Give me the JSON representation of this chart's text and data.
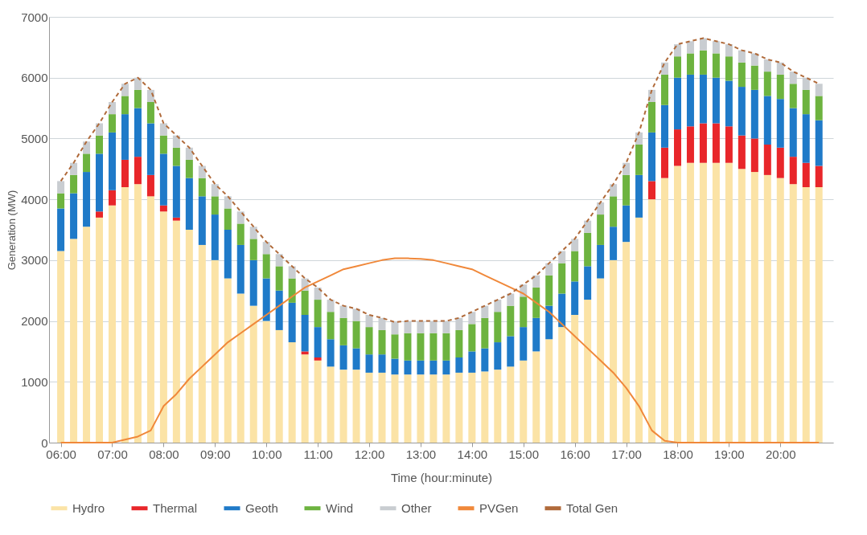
{
  "chart_data": {
    "type": "bar",
    "stacked": true,
    "xlabel": "Time (hour:minute)",
    "ylabel": "Generation (MW)",
    "x": [
      6,
      6.25,
      6.5,
      6.75,
      7,
      7.25,
      7.5,
      7.75,
      8,
      8.25,
      8.5,
      8.75,
      9,
      9.25,
      9.5,
      9.75,
      10,
      10.25,
      10.5,
      10.75,
      11,
      11.25,
      11.5,
      11.75,
      12,
      12.25,
      12.5,
      12.75,
      13,
      13.25,
      13.5,
      13.75,
      14,
      14.25,
      14.5,
      14.75,
      15,
      15.25,
      15.5,
      15.75,
      16,
      16.25,
      16.5,
      16.75,
      17,
      17.25,
      17.5,
      17.75,
      18,
      18.25,
      18.5,
      18.75,
      19,
      19.25,
      19.5,
      19.75,
      20,
      20.25,
      20.5,
      20.75
    ],
    "xlim": [
      5.85,
      20.95
    ],
    "xticks": [
      {
        "value": 6,
        "label": "06:00"
      },
      {
        "value": 7,
        "label": "07:00"
      },
      {
        "value": 8,
        "label": "08:00"
      },
      {
        "value": 9,
        "label": "09:00"
      },
      {
        "value": 10,
        "label": "10:00"
      },
      {
        "value": 11,
        "label": "11:00"
      },
      {
        "value": 12,
        "label": "12:00"
      },
      {
        "value": 13,
        "label": "13:00"
      },
      {
        "value": 14,
        "label": "14:00"
      },
      {
        "value": 15,
        "label": "15:00"
      },
      {
        "value": 16,
        "label": "16:00"
      },
      {
        "value": 17,
        "label": "17:00"
      },
      {
        "value": 18,
        "label": "18:00"
      },
      {
        "value": 19,
        "label": "19:00"
      },
      {
        "value": 20,
        "label": "20:00"
      }
    ],
    "ylim": [
      0,
      7000
    ],
    "yticks": [
      0,
      1000,
      2000,
      3000,
      4000,
      5000,
      6000,
      7000
    ],
    "grid": "y",
    "legend": "bottom",
    "series": [
      {
        "name": "Hydro",
        "color": "#fbe3a6",
        "values": [
          3150,
          3350,
          3550,
          3700,
          3900,
          4200,
          4250,
          4050,
          3800,
          3650,
          3500,
          3250,
          3000,
          2700,
          2450,
          2250,
          2000,
          1850,
          1650,
          1450,
          1350,
          1250,
          1200,
          1200,
          1150,
          1150,
          1120,
          1120,
          1120,
          1120,
          1120,
          1150,
          1150,
          1170,
          1200,
          1250,
          1350,
          1500,
          1700,
          1900,
          2100,
          2350,
          2700,
          3000,
          3300,
          3700,
          4000,
          4350,
          4550,
          4600,
          4600,
          4600,
          4600,
          4500,
          4450,
          4400,
          4350,
          4250,
          4200,
          4200
        ]
      },
      {
        "name": "Thermal",
        "color": "#e8262a",
        "values": [
          0,
          0,
          0,
          100,
          250,
          450,
          450,
          350,
          100,
          50,
          0,
          0,
          0,
          0,
          0,
          0,
          0,
          0,
          0,
          50,
          50,
          0,
          0,
          0,
          0,
          0,
          0,
          0,
          0,
          0,
          0,
          0,
          0,
          0,
          0,
          0,
          0,
          0,
          0,
          0,
          0,
          0,
          0,
          0,
          0,
          0,
          300,
          500,
          600,
          600,
          650,
          650,
          600,
          550,
          550,
          500,
          500,
          450,
          400,
          350
        ]
      },
      {
        "name": "Geoth",
        "color": "#1f7ac8",
        "values": [
          700,
          750,
          900,
          950,
          950,
          750,
          800,
          850,
          850,
          850,
          850,
          800,
          750,
          800,
          800,
          750,
          700,
          650,
          650,
          600,
          500,
          450,
          400,
          350,
          300,
          300,
          260,
          230,
          230,
          230,
          230,
          250,
          350,
          380,
          450,
          500,
          550,
          550,
          550,
          550,
          550,
          550,
          550,
          550,
          600,
          700,
          800,
          700,
          850,
          850,
          800,
          750,
          750,
          800,
          800,
          800,
          800,
          800,
          800,
          750
        ]
      },
      {
        "name": "Wind",
        "color": "#6db33f",
        "values": [
          250,
          300,
          300,
          300,
          300,
          300,
          300,
          350,
          300,
          300,
          300,
          300,
          300,
          350,
          350,
          350,
          400,
          400,
          400,
          400,
          450,
          450,
          450,
          450,
          450,
          400,
          400,
          450,
          450,
          450,
          450,
          450,
          450,
          500,
          500,
          500,
          500,
          500,
          500,
          500,
          500,
          550,
          500,
          500,
          500,
          500,
          500,
          500,
          350,
          350,
          400,
          400,
          400,
          400,
          400,
          400,
          400,
          400,
          400,
          400
        ]
      },
      {
        "name": "Other",
        "color": "#c9cdd1",
        "values": [
          200,
          200,
          200,
          200,
          200,
          200,
          200,
          200,
          200,
          200,
          200,
          200,
          200,
          200,
          200,
          200,
          200,
          200,
          200,
          200,
          200,
          200,
          200,
          200,
          200,
          200,
          200,
          200,
          200,
          200,
          200,
          200,
          200,
          200,
          200,
          200,
          200,
          200,
          200,
          200,
          200,
          200,
          200,
          200,
          200,
          200,
          200,
          200,
          200,
          200,
          200,
          200,
          200,
          200,
          200,
          200,
          200,
          200,
          200,
          200
        ]
      },
      {
        "name": "PVGen",
        "type": "line",
        "color": "#f0883a",
        "values": [
          0,
          0,
          0,
          0,
          0,
          50,
          100,
          200,
          600,
          800,
          1050,
          1250,
          1450,
          1650,
          1800,
          1950,
          2100,
          2250,
          2400,
          2550,
          2650,
          2750,
          2850,
          2900,
          2950,
          3000,
          3030,
          3030,
          3020,
          3000,
          2950,
          2900,
          2850,
          2750,
          2650,
          2550,
          2450,
          2300,
          2150,
          1950,
          1750,
          1550,
          1350,
          1150,
          900,
          600,
          200,
          30,
          0,
          0,
          0,
          0,
          0,
          0,
          0,
          0,
          0,
          0,
          0,
          0
        ]
      },
      {
        "name": "Total Gen",
        "type": "line",
        "line_style": "dashed",
        "color": "#b06a3a",
        "values": [
          4300,
          4600,
          4950,
          5250,
          5600,
          5900,
          6000,
          5800,
          5250,
          5050,
          4850,
          4550,
          4250,
          4050,
          3800,
          3550,
          3300,
          3100,
          2900,
          2700,
          2550,
          2350,
          2250,
          2200,
          2100,
          2050,
          1980,
          2000,
          2000,
          2000,
          2000,
          2050,
          2150,
          2250,
          2350,
          2450,
          2600,
          2750,
          2950,
          3150,
          3350,
          3650,
          3950,
          4250,
          4600,
          5100,
          5800,
          6250,
          6550,
          6600,
          6650,
          6600,
          6550,
          6450,
          6400,
          6300,
          6250,
          6100,
          6000,
          5900
        ]
      }
    ]
  }
}
